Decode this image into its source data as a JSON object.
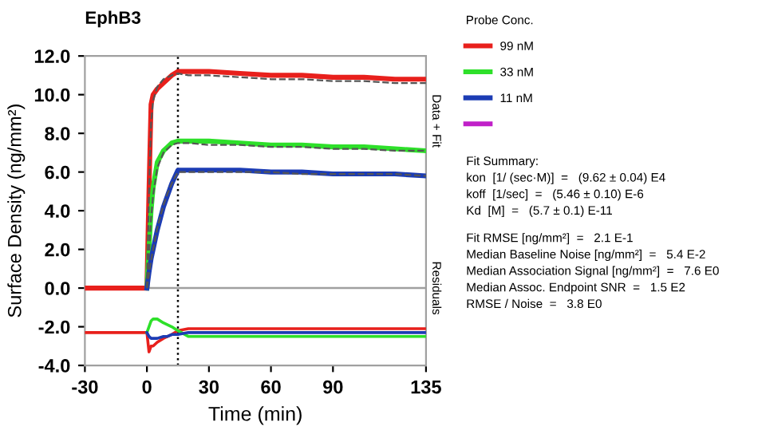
{
  "chart_data": {
    "type": "line",
    "title": "EphB3",
    "xlabel": "Time (min)",
    "ylabel": "Surface Density (ng/mm²)",
    "legend_title": "Probe Conc.",
    "legend": "right",
    "x": [
      -30,
      -20,
      -10,
      0,
      1,
      2,
      3,
      5,
      8,
      10,
      12,
      15,
      20,
      30,
      45,
      60,
      75,
      90,
      105,
      120,
      135
    ],
    "xlim": [
      -30,
      135
    ],
    "xticks": [
      -30,
      0,
      30,
      60,
      90,
      135
    ],
    "ylim": [
      -4,
      12
    ],
    "yticks": [
      {
        "value": -4,
        "label": "-4.0"
      },
      {
        "value": -2,
        "label": "-2.0"
      },
      {
        "value": 0,
        "label": "0.0"
      },
      {
        "value": 2,
        "label": "2.0"
      },
      {
        "value": 4,
        "label": "4.0"
      },
      {
        "value": 6,
        "label": "6.0"
      },
      {
        "value": 8,
        "label": "8.0"
      },
      {
        "value": 10,
        "label": "10.0"
      },
      {
        "value": 12,
        "label": "12.0"
      }
    ],
    "grid": false,
    "marker": "none",
    "series": [
      {
        "name": "99 nM",
        "color": "#e8201c",
        "values": [
          0,
          0,
          0,
          0,
          5.0,
          9.5,
          10.0,
          10.3,
          10.6,
          10.8,
          11.0,
          11.2,
          11.2,
          11.2,
          11.1,
          11.0,
          11.0,
          10.9,
          10.9,
          10.8,
          10.8
        ]
      },
      {
        "name": "33 nM",
        "color": "#2ee02a",
        "values": [
          null,
          null,
          null,
          0,
          2.0,
          4.0,
          5.2,
          6.5,
          7.1,
          7.3,
          7.5,
          7.6,
          7.6,
          7.6,
          7.5,
          7.4,
          7.4,
          7.3,
          7.3,
          7.2,
          7.1
        ]
      },
      {
        "name": "11 nM",
        "color": "#1c3cb4",
        "values": [
          null,
          null,
          null,
          0,
          0.8,
          1.5,
          2.0,
          3.0,
          4.2,
          4.8,
          5.4,
          6.1,
          6.1,
          6.1,
          6.1,
          6.0,
          6.0,
          5.9,
          5.9,
          5.9,
          5.8
        ]
      },
      {
        "color": "#c020c8",
        "values": [
          null,
          null,
          null,
          null,
          null,
          null,
          null,
          null,
          null,
          null,
          null,
          null,
          null,
          null,
          null,
          null,
          null,
          null,
          null,
          null,
          null
        ]
      },
      {
        "color": "#e8201c",
        "values": [
          -2.3,
          -2.3,
          -2.3,
          -2.3,
          -3.3,
          -3.0,
          -3.0,
          -2.8,
          -2.6,
          -2.5,
          -2.4,
          -2.2,
          -2.1,
          -2.1,
          -2.1,
          -2.1,
          -2.1,
          -2.1,
          -2.1,
          -2.1,
          -2.1
        ]
      },
      {
        "color": "#2ee02a",
        "values": [
          null,
          null,
          null,
          -2.3,
          -2.0,
          -1.7,
          -1.6,
          -1.6,
          -1.8,
          -1.9,
          -2.0,
          -2.2,
          -2.5,
          -2.5,
          -2.5,
          -2.5,
          -2.5,
          -2.5,
          -2.5,
          -2.5,
          -2.5
        ]
      },
      {
        "color": "#1c3cb4",
        "values": [
          null,
          null,
          null,
          -2.3,
          -2.5,
          -2.6,
          -2.6,
          -2.6,
          -2.5,
          -2.5,
          -2.4,
          -2.4,
          -2.3,
          -2.3,
          -2.3,
          -2.3,
          -2.3,
          -2.3,
          -2.3,
          -2.3,
          -2.3
        ]
      },
      {
        "color": "#555555",
        "line_style": "dashed",
        "values": [
          null,
          null,
          null,
          0,
          4.8,
          8.5,
          9.7,
          10.4,
          10.8,
          10.9,
          11.0,
          11.1,
          11.0,
          11.0,
          10.9,
          10.8,
          10.8,
          10.7,
          10.7,
          10.6,
          10.6
        ]
      },
      {
        "color": "#555555",
        "line_style": "dashed",
        "values": [
          null,
          null,
          null,
          0,
          1.8,
          3.6,
          4.8,
          6.2,
          7.0,
          7.2,
          7.4,
          7.5,
          7.5,
          7.4,
          7.4,
          7.3,
          7.3,
          7.2,
          7.2,
          7.1,
          7.1
        ]
      },
      {
        "color": "#555555",
        "line_style": "dashed",
        "values": [
          null,
          null,
          null,
          0,
          0.7,
          1.4,
          2.0,
          3.1,
          4.3,
          4.9,
          5.4,
          6.0,
          6.0,
          6.0,
          6.0,
          6.0,
          5.9,
          5.9,
          5.9,
          5.9,
          5.8
        ]
      }
    ],
    "ref_lines": [
      {
        "axis": "y",
        "value": 0,
        "color": "#a0a0a0",
        "line_style": "solid"
      },
      {
        "axis": "x",
        "value": 15,
        "color": "#000000",
        "line_style": "dotted"
      }
    ],
    "annotations": [
      "Data + Fit",
      "Residuals",
      "Fit Summary:",
      "kon  [1/ (sec·M)]  =   (9.62 ± 0.04) E4",
      "koff  [1/sec]  =   (5.46 ± 0.10) E-6",
      "Kd  [M]  =   (5.7 ± 0.1) E-11",
      "Fit RMSE [ng/mm²]  =   2.1 E-1",
      "Median Baseline Noise [ng/mm²]  =   5.4 E-2",
      "Median Association Signal [ng/mm²]  =   7.6 E0",
      "Median Assoc. Endpoint SNR  =   1.5 E2",
      "RMSE / Noise  =   3.8 E0"
    ]
  }
}
